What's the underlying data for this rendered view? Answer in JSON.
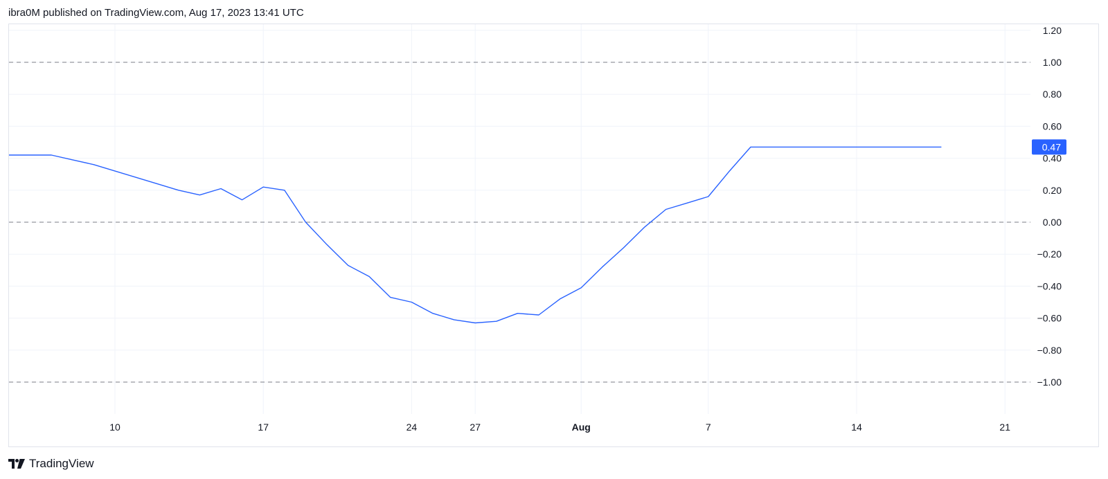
{
  "header": {
    "publisher_line": "ibra0M published on TradingView.com, Aug 17, 2023 13:41 UTC"
  },
  "footer": {
    "brand_label": "TradingView",
    "logo_icon": "tradingview-logo-icon"
  },
  "colors": {
    "line": "#2962ff",
    "last_price_bg": "#2962ff",
    "grid": "#f0f3fa",
    "dashed_level": "#787b86"
  },
  "chart_data": {
    "type": "line",
    "x_tick_labels": [
      "10",
      "17",
      "24",
      "27",
      "Aug",
      "7",
      "14",
      "21"
    ],
    "x_tick_dates": [
      "2023-07-10",
      "2023-07-17",
      "2023-07-24",
      "2023-07-27",
      "2023-08-01",
      "2023-08-07",
      "2023-08-14",
      "2023-08-21"
    ],
    "x_range": [
      "2023-07-05",
      "2023-08-23"
    ],
    "y_tick_labels": [
      "1.20",
      "1.00",
      "0.80",
      "0.60",
      "0.40",
      "0.20",
      "0.00",
      "−0.20",
      "−0.40",
      "−0.60",
      "−0.80",
      "−1.00"
    ],
    "ylim": [
      -1.2,
      1.24
    ],
    "y_axis_position": "right",
    "grid": true,
    "dashed_levels": [
      1.0,
      0.0,
      -1.0
    ],
    "last_value_label": "0.47",
    "series": [
      {
        "x": [
          "2023-07-05",
          "2023-07-06",
          "2023-07-07",
          "2023-07-08",
          "2023-07-09",
          "2023-07-10",
          "2023-07-11",
          "2023-07-12",
          "2023-07-13",
          "2023-07-14",
          "2023-07-15",
          "2023-07-16",
          "2023-07-17",
          "2023-07-18",
          "2023-07-19",
          "2023-07-20",
          "2023-07-21",
          "2023-07-22",
          "2023-07-23",
          "2023-07-24",
          "2023-07-25",
          "2023-07-26",
          "2023-07-27",
          "2023-07-28",
          "2023-07-29",
          "2023-07-30",
          "2023-07-31",
          "2023-08-01",
          "2023-08-02",
          "2023-08-03",
          "2023-08-04",
          "2023-08-05",
          "2023-08-06",
          "2023-08-07",
          "2023-08-08",
          "2023-08-09",
          "2023-08-10",
          "2023-08-11",
          "2023-08-12",
          "2023-08-13",
          "2023-08-14",
          "2023-08-15",
          "2023-08-16",
          "2023-08-17",
          "2023-08-18"
        ],
        "y": [
          0.42,
          0.42,
          0.42,
          0.39,
          0.36,
          0.32,
          0.28,
          0.24,
          0.2,
          0.17,
          0.21,
          0.14,
          0.22,
          0.2,
          0.0,
          -0.14,
          -0.27,
          -0.34,
          -0.47,
          -0.5,
          -0.57,
          -0.61,
          -0.63,
          -0.62,
          -0.57,
          -0.58,
          -0.48,
          -0.41,
          -0.28,
          -0.16,
          -0.03,
          0.08,
          0.12,
          0.16,
          0.32,
          0.47,
          0.47,
          0.47,
          0.47,
          0.47,
          0.47,
          0.47,
          0.47,
          0.47,
          0.47
        ]
      }
    ]
  }
}
